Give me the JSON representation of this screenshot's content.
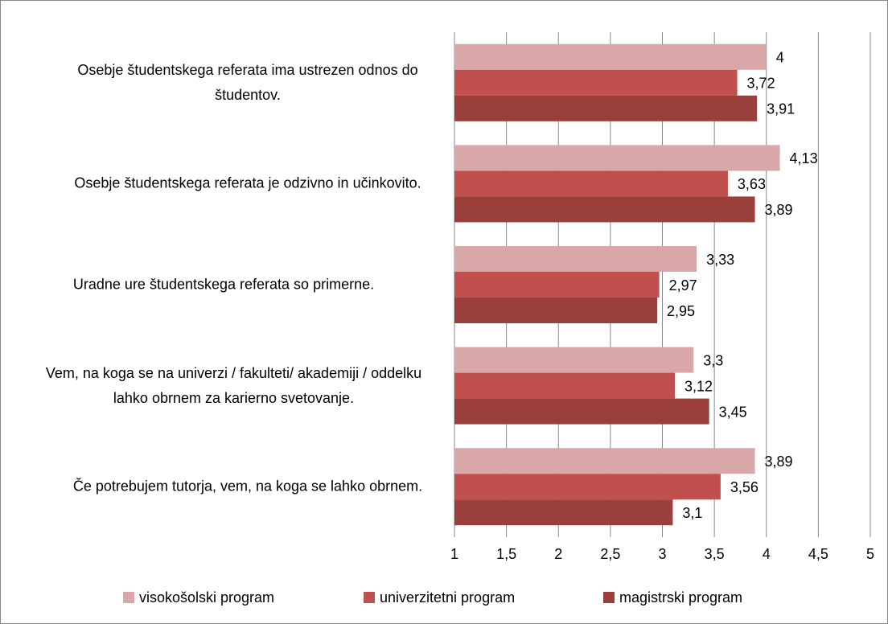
{
  "chart_data": {
    "type": "bar",
    "orientation": "horizontal",
    "categories": [
      "Osebje študentskega referata ima ustrezen odnos do študentov.",
      "Osebje študentskega referata je odzivno in učinkovito.",
      "Uradne ure študentskega referata so primerne.",
      "Vem, na koga se na univerzi / fakulteti/ akademiji / oddelku lahko obrnem za karierno svetovanje.",
      "Če potrebujem tutorja, vem, na koga se lahko obrnem."
    ],
    "series": [
      {
        "name": "visokošolski program",
        "color": "#d9a7a8",
        "values": [
          4,
          4.13,
          3.33,
          3.3,
          3.89
        ],
        "value_labels": [
          "4",
          "4,13",
          "3,33",
          "3,3",
          "3,89"
        ]
      },
      {
        "name": "univerzitetni program",
        "color": "#c0504d",
        "values": [
          3.72,
          3.63,
          2.97,
          3.12,
          3.56
        ],
        "value_labels": [
          "3,72",
          "3,63",
          "2,97",
          "3,12",
          "3,56"
        ]
      },
      {
        "name": "magistrski program",
        "color": "#9b3f3c",
        "values": [
          3.91,
          3.89,
          2.95,
          3.45,
          3.1
        ],
        "value_labels": [
          "3,91",
          "3,89",
          "2,95",
          "3,45",
          "3,1"
        ]
      }
    ],
    "xlim": [
      1,
      5
    ],
    "xticks": [
      1,
      {
        "value": 1.5,
        "label": "1,5"
      },
      2,
      {
        "value": 2.5,
        "label": "2,5"
      },
      3,
      {
        "value": 3.5,
        "label": "3,5"
      },
      4,
      {
        "value": 4.5,
        "label": "4,5"
      },
      5
    ],
    "grid": true,
    "legend": "bottom"
  }
}
